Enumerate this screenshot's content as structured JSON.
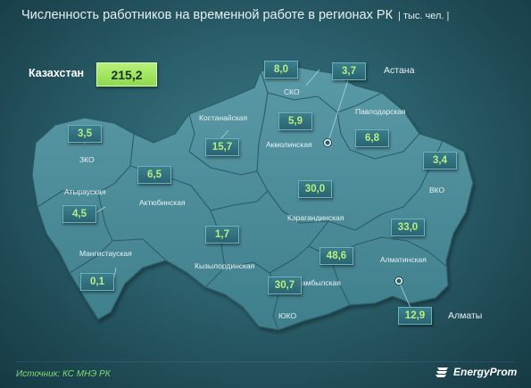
{
  "header": {
    "title": "Численность работников на временной работе в регионах РК",
    "unit": "| тыс. чел. |"
  },
  "total": {
    "label": "Казахстан",
    "value": "215,2"
  },
  "regions": {
    "sko": {
      "name": "СКО",
      "value": "8,0"
    },
    "astana": {
      "name": "Астана",
      "value": "3,7"
    },
    "pavlodar": {
      "name": "Павлодарская",
      "value": "6,8"
    },
    "akmola": {
      "name": "Акмолинская",
      "value": "5,9"
    },
    "kostanay": {
      "name": "Костанайская",
      "value": "15,7"
    },
    "zko": {
      "name": "ЗКО",
      "value": "3,5"
    },
    "atyrau": {
      "name": "Атырауская",
      "value": "4,5"
    },
    "aktobe": {
      "name": "Актюбинская",
      "value": "6,5"
    },
    "vko": {
      "name": "ВКО",
      "value": "3,4"
    },
    "karaganda": {
      "name": "Карагандинская",
      "value": "30,0"
    },
    "mangystau": {
      "name": "Мангистауская",
      "value": "0,1"
    },
    "kyzylorda": {
      "name": "Кызылординская",
      "value": "1,7"
    },
    "almaty_reg": {
      "name": "Алматинская",
      "value": "33,0"
    },
    "zhambyl": {
      "name": "Жамбылская",
      "value": "48,6"
    },
    "uko": {
      "name": "ЮКО",
      "value": "30,7"
    },
    "almaty": {
      "name": "Алматы",
      "value": "12,9"
    }
  },
  "footer": {
    "source": "Источник: КС МНЭ РК",
    "brand": "EnergyProm"
  },
  "colors": {
    "value_text": "#b6f07c",
    "total_fill": "#8fd94a",
    "land": "#4f8f9c",
    "border": "#2a5d68",
    "source_text": "#7ee06a"
  }
}
